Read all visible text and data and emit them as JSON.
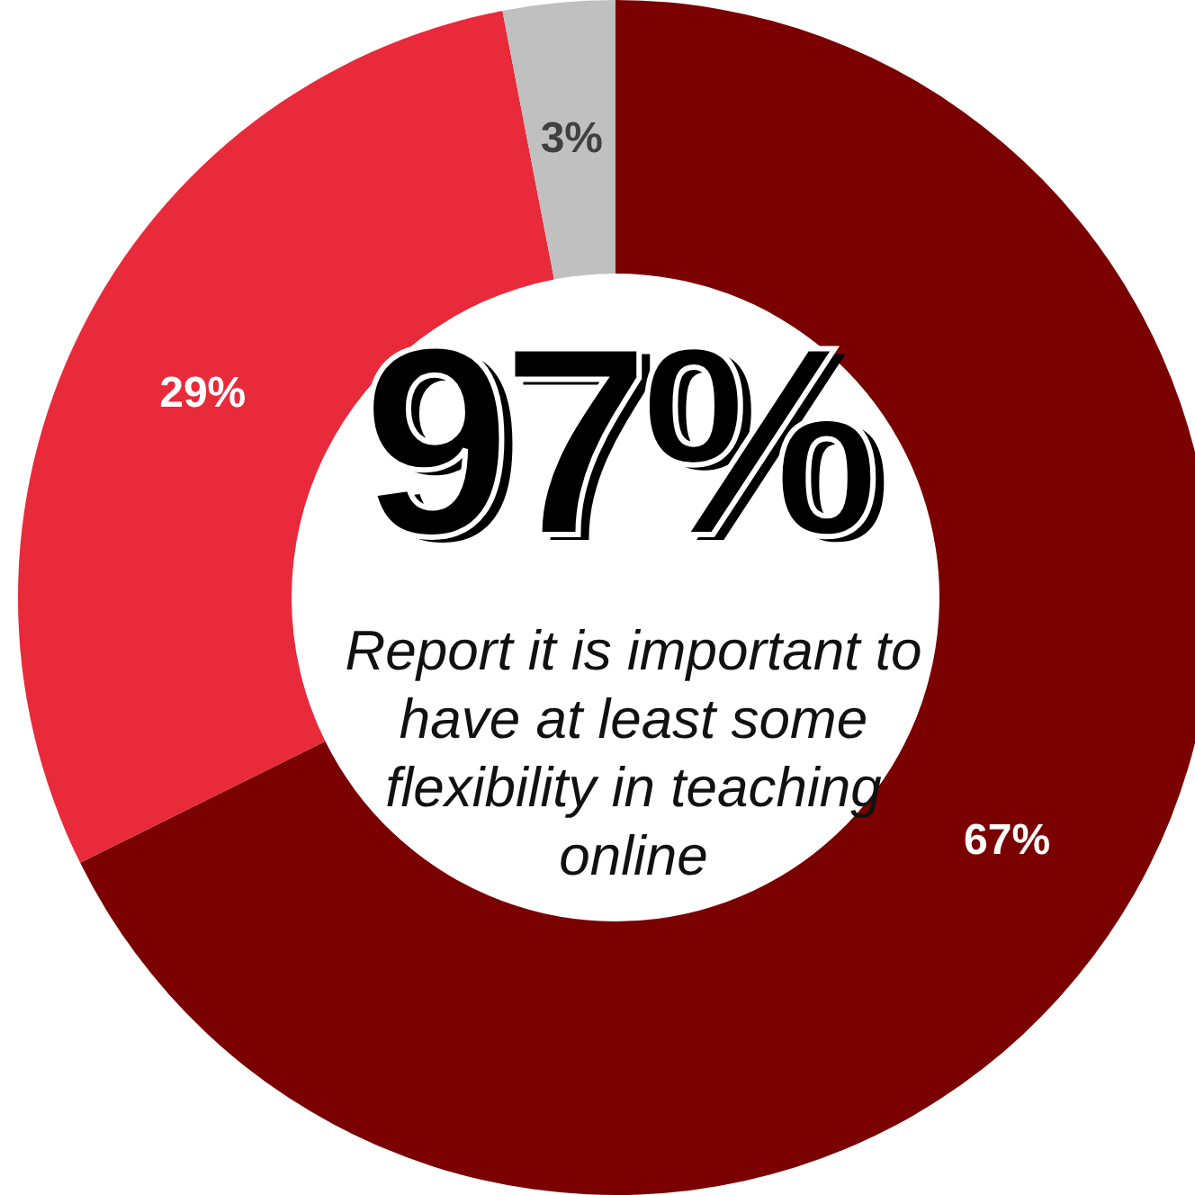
{
  "chart_data": {
    "type": "donut",
    "title": "97%",
    "subtitle": "Report it is important to have at least some flexibility in teaching online",
    "categories": [
      null,
      null,
      null
    ],
    "values": [
      67,
      29,
      3
    ],
    "colors": [
      "#7b0000",
      "#e82a3a",
      "#c0c0c0"
    ],
    "value_labels": [
      "67%",
      "29%",
      "3%"
    ],
    "legend": false
  }
}
